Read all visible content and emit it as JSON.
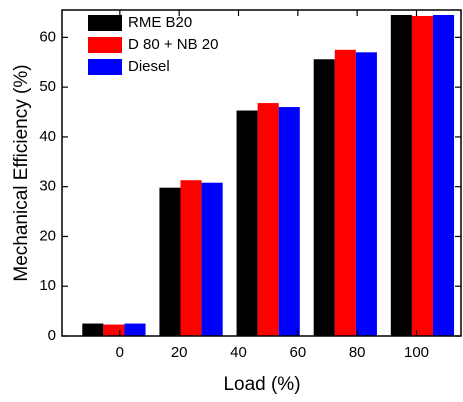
{
  "chart_data": {
    "type": "bar",
    "x_label": "Load (%)",
    "y_label": "Mechanical Efficiency (%)",
    "x": [
      -2,
      24,
      50,
      76,
      102
    ],
    "series": [
      {
        "name": "RME B20",
        "color": "#000000",
        "values": [
          2.5,
          29.8,
          45.3,
          55.6,
          64.5
        ]
      },
      {
        "name": "D 80 + NB 20",
        "color": "#ff0000",
        "values": [
          2.3,
          31.3,
          46.8,
          57.5,
          64.3
        ]
      },
      {
        "name": "Diesel",
        "color": "#0000ff",
        "values": [
          2.5,
          30.8,
          46.0,
          57.0,
          64.5
        ]
      }
    ],
    "xlim": [
      -19.5,
      115
    ],
    "xticks": [
      0,
      20,
      40,
      60,
      80,
      100
    ],
    "ylim": [
      0,
      65.5
    ],
    "yticks": [
      0,
      10,
      20,
      30,
      40,
      50,
      60
    ],
    "legend": "upper-left",
    "grid": false
  }
}
